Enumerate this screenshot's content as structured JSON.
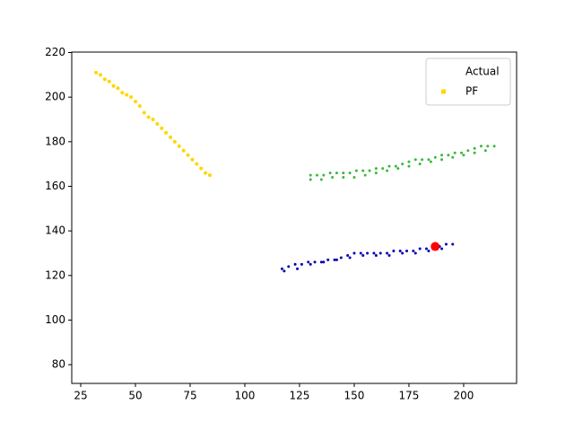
{
  "chart_data": {
    "type": "scatter",
    "xlim": [
      20.9,
      224.2
    ],
    "ylim": [
      71.6,
      220.2
    ],
    "xticks": [
      25,
      50,
      75,
      100,
      125,
      150,
      175,
      200
    ],
    "yticks": [
      80,
      100,
      120,
      140,
      160,
      180,
      200,
      220
    ],
    "grid": false,
    "legend": "upper right",
    "series": [
      {
        "name": "Actual",
        "color": "#ffffff",
        "marker_size": 1.5,
        "x": [
          40,
          60,
          80,
          150,
          190,
          140,
          180
        ],
        "values": [
          205,
          188,
          168,
          166,
          174,
          127,
          131
        ]
      },
      {
        "name": "PF",
        "color": "#ffd700",
        "marker_size": 2,
        "x": [
          32,
          34,
          36,
          38,
          40,
          42,
          44,
          46,
          48,
          50,
          52,
          54,
          56,
          58,
          60,
          62,
          64,
          66,
          68,
          70,
          72,
          74,
          76,
          78,
          80,
          82,
          84
        ],
        "values": [
          211,
          210,
          208,
          207,
          205,
          204,
          202,
          201,
          200,
          198,
          196,
          193,
          191,
          190,
          188,
          186,
          184,
          182,
          180,
          178,
          176,
          174,
          172,
          170,
          168,
          166,
          165
        ]
      },
      {
        "color": "#3cb83c",
        "marker_size": 1.5,
        "x": [
          130,
          133,
          136,
          139,
          142,
          145,
          148,
          151,
          154,
          157,
          160,
          163,
          166,
          169,
          172,
          175,
          178,
          181,
          184,
          187,
          190,
          193,
          196,
          199,
          202,
          205,
          208,
          211,
          214,
          130,
          135,
          140,
          145,
          150,
          155,
          160,
          165,
          170,
          175,
          180,
          185,
          190,
          195,
          200,
          205,
          210
        ],
        "values": [
          165,
          165,
          165,
          166,
          166,
          166,
          166,
          167,
          167,
          167,
          168,
          168,
          169,
          169,
          170,
          171,
          172,
          172,
          172,
          173,
          174,
          174,
          175,
          175,
          176,
          177,
          178,
          178,
          178,
          163,
          163,
          164,
          164,
          164,
          165,
          166,
          167,
          168,
          169,
          170,
          171,
          172,
          173,
          174,
          175,
          176
        ]
      },
      {
        "color": "#0000b4",
        "marker_size": 1.5,
        "x": [
          117,
          120,
          123,
          126,
          129,
          132,
          135,
          138,
          141,
          144,
          147,
          150,
          153,
          156,
          159,
          162,
          165,
          168,
          171,
          174,
          177,
          180,
          183,
          186,
          189,
          192,
          195,
          118,
          124,
          130,
          136,
          142,
          148,
          154,
          160,
          166,
          172,
          178,
          184,
          190
        ],
        "values": [
          123,
          124,
          125,
          125,
          126,
          126,
          126,
          127,
          127,
          128,
          129,
          130,
          130,
          130,
          130,
          130,
          130,
          131,
          131,
          131,
          131,
          132,
          132,
          132,
          133,
          134,
          134,
          122,
          123,
          125,
          126,
          127,
          128,
          129,
          129,
          129,
          130,
          130,
          131,
          132
        ]
      },
      {
        "color": "#ff0000",
        "marker_size": 5,
        "x": [
          187
        ],
        "values": [
          133
        ]
      }
    ]
  }
}
